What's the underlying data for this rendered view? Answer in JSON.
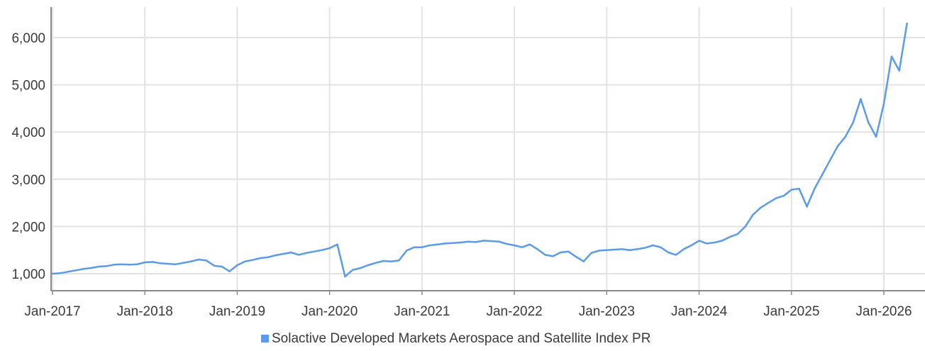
{
  "chart_data": {
    "type": "line",
    "title": "",
    "xlabel": "",
    "ylabel": "",
    "x_ticks": [
      "Jan-2017",
      "Jan-2018",
      "Jan-2019",
      "Jan-2020",
      "Jan-2021",
      "Jan-2022",
      "Jan-2023",
      "Jan-2024",
      "Jan-2025",
      "Jan-2026"
    ],
    "y_ticks": [
      1000,
      2000,
      3000,
      4000,
      5000,
      6000
    ],
    "y_tick_labels": [
      "1,000",
      "2,000",
      "3,000",
      "4,000",
      "5,000",
      "6,000"
    ],
    "xlim": [
      "2016-11",
      "2026-05"
    ],
    "ylim": [
      740,
      6500
    ],
    "grid": true,
    "legend_position": "bottom",
    "colors": {
      "series": "#5b9bea",
      "grid": "#e3e3e3",
      "axis": "#8a8a8a"
    },
    "series": [
      {
        "name": "Solactive Developed Markets Aerospace and Satellite Index PR",
        "x": [
          "2017-01",
          "2017-02",
          "2017-03",
          "2017-04",
          "2017-05",
          "2017-06",
          "2017-07",
          "2017-08",
          "2017-09",
          "2017-10",
          "2017-11",
          "2017-12",
          "2018-01",
          "2018-02",
          "2018-03",
          "2018-04",
          "2018-05",
          "2018-06",
          "2018-07",
          "2018-08",
          "2018-09",
          "2018-10",
          "2018-11",
          "2018-12",
          "2019-01",
          "2019-02",
          "2019-03",
          "2019-04",
          "2019-05",
          "2019-06",
          "2019-07",
          "2019-08",
          "2019-09",
          "2019-10",
          "2019-11",
          "2019-12",
          "2020-01",
          "2020-02",
          "2020-03",
          "2020-04",
          "2020-05",
          "2020-06",
          "2020-07",
          "2020-08",
          "2020-09",
          "2020-10",
          "2020-11",
          "2020-12",
          "2021-01",
          "2021-02",
          "2021-03",
          "2021-04",
          "2021-05",
          "2021-06",
          "2021-07",
          "2021-08",
          "2021-09",
          "2021-10",
          "2021-11",
          "2021-12",
          "2022-01",
          "2022-02",
          "2022-03",
          "2022-04",
          "2022-05",
          "2022-06",
          "2022-07",
          "2022-08",
          "2022-09",
          "2022-10",
          "2022-11",
          "2022-12",
          "2023-01",
          "2023-02",
          "2023-03",
          "2023-04",
          "2023-05",
          "2023-06",
          "2023-07",
          "2023-08",
          "2023-09",
          "2023-10",
          "2023-11",
          "2023-12",
          "2024-01",
          "2024-02",
          "2024-03",
          "2024-04",
          "2024-05",
          "2024-06",
          "2024-07",
          "2024-08",
          "2024-09",
          "2024-10",
          "2024-11",
          "2024-12",
          "2025-01",
          "2025-02",
          "2025-03",
          "2025-04",
          "2025-05",
          "2025-06",
          "2025-07",
          "2025-08",
          "2025-09",
          "2025-10",
          "2025-11",
          "2025-12",
          "2026-01",
          "2026-02",
          "2026-03",
          "2026-04"
        ],
        "values": [
          1000,
          1010,
          1040,
          1070,
          1100,
          1120,
          1150,
          1160,
          1190,
          1200,
          1190,
          1200,
          1240,
          1250,
          1220,
          1210,
          1200,
          1230,
          1260,
          1300,
          1280,
          1170,
          1150,
          1050,
          1180,
          1260,
          1290,
          1330,
          1350,
          1390,
          1420,
          1450,
          1400,
          1440,
          1470,
          1500,
          1540,
          1620,
          940,
          1080,
          1120,
          1180,
          1230,
          1270,
          1260,
          1280,
          1490,
          1560,
          1560,
          1600,
          1620,
          1640,
          1650,
          1660,
          1680,
          1670,
          1700,
          1690,
          1680,
          1630,
          1600,
          1560,
          1620,
          1520,
          1400,
          1370,
          1450,
          1470,
          1360,
          1260,
          1440,
          1490,
          1500,
          1510,
          1520,
          1500,
          1520,
          1550,
          1600,
          1560,
          1450,
          1400,
          1520,
          1600,
          1700,
          1640,
          1660,
          1700,
          1780,
          1840,
          2000,
          2250,
          2400,
          2500,
          2600,
          2650,
          2780,
          2800,
          2420,
          2800,
          3100,
          3400,
          3700,
          3900,
          4200,
          4700,
          4200,
          3900,
          4600,
          5600,
          5300,
          6300
        ]
      }
    ]
  }
}
